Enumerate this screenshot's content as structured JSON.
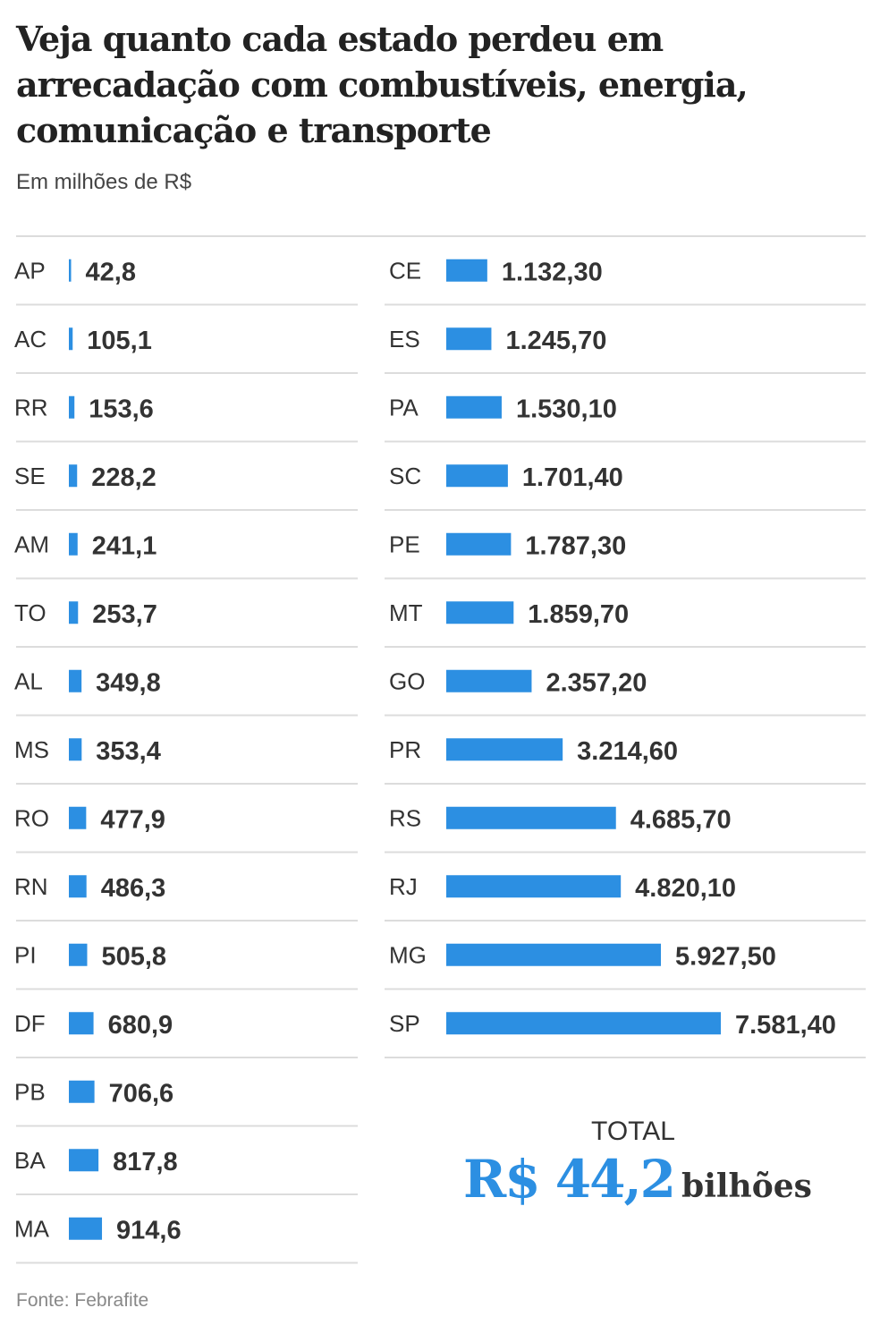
{
  "title": "Veja quanto cada estado perdeu em arrecadação com combustíveis, energia, comunicação e transporte",
  "subtitle": "Em milhões de R$",
  "source": "Fonte: Febrafite",
  "total": {
    "label": "TOTAL",
    "amount": "R$ 44,2",
    "unit": "bilhões"
  },
  "colors": {
    "bar": "#2c8fe2",
    "text": "#333333",
    "separator": "#dcdcdc"
  },
  "chart_data": {
    "type": "bar",
    "orientation": "horizontal",
    "columns": [
      {
        "categories": [
          "AP",
          "AC",
          "RR",
          "SE",
          "AM",
          "TO",
          "AL",
          "MS",
          "RO",
          "RN",
          "PI",
          "DF",
          "PB",
          "BA",
          "MA"
        ],
        "values": [
          42.8,
          105.1,
          153.6,
          228.2,
          241.1,
          253.7,
          349.8,
          353.4,
          477.9,
          486.3,
          505.8,
          680.9,
          706.6,
          817.8,
          914.6
        ],
        "value_labels": [
          "42,8",
          "105,1",
          "153,6",
          "228,2",
          "241,1",
          "253,7",
          "349,8",
          "353,4",
          "477,9",
          "486,3",
          "505,8",
          "680,9",
          "706,6",
          "817,8",
          "914,6"
        ]
      },
      {
        "categories": [
          "CE",
          "ES",
          "PA",
          "SC",
          "PE",
          "MT",
          "GO",
          "PR",
          "RS",
          "RJ",
          "MG",
          "SP"
        ],
        "values": [
          1132.3,
          1245.7,
          1530.1,
          1701.4,
          1787.3,
          1859.7,
          2357.2,
          3214.6,
          4685.7,
          4820.1,
          5927.5,
          7581.4
        ],
        "value_labels": [
          "1.132,30",
          "1.245,70",
          "1.530,10",
          "1.701,40",
          "1.787,30",
          "1.859,70",
          "2.357,20",
          "3.214,60",
          "4.685,70",
          "4.820,10",
          "5.927,50",
          "7.581,40"
        ]
      }
    ],
    "unit": "milhões de R$",
    "grid": false,
    "legend": "none"
  }
}
